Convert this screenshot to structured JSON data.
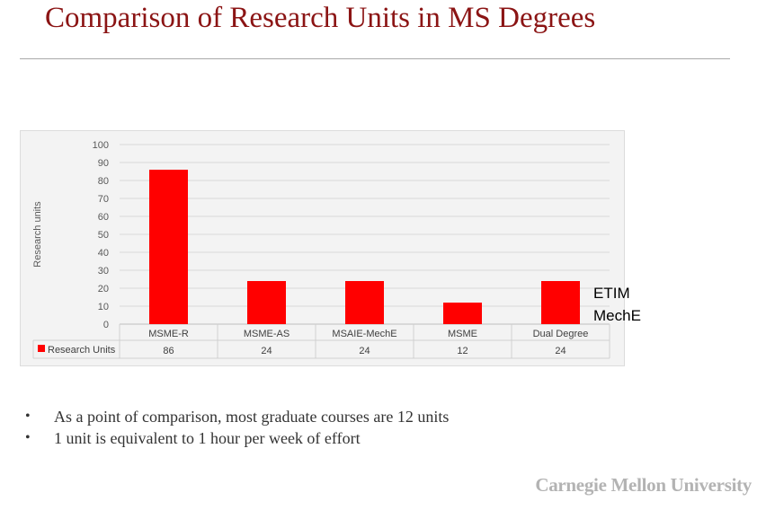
{
  "slide": {
    "title": "Comparison of Research Units in MS Degrees",
    "side_note": [
      "ETIM",
      "MechE"
    ],
    "bullets": [
      "As a point of comparison, most graduate courses are 12 units",
      "1 unit is equivalent to 1 hour per week of effort"
    ],
    "footer": "Carnegie Mellon University"
  },
  "colors": {
    "title": "#8b1414",
    "bar": "#ff0000"
  },
  "chart_data": {
    "type": "bar",
    "categories": [
      "MSME-R",
      "MSME-AS",
      "MSAIE-MechE",
      "MSME",
      "Dual Degree"
    ],
    "series": [
      {
        "name": "Research Units",
        "values": [
          86,
          24,
          24,
          12,
          24
        ]
      }
    ],
    "value_labels": [
      "86",
      "24",
      "24",
      "12",
      "24"
    ],
    "ylabel": "Research units",
    "ylim": [
      0,
      100
    ],
    "yticks": [
      "0",
      "10",
      "20",
      "30",
      "40",
      "50",
      "60",
      "70",
      "80",
      "90",
      "100"
    ],
    "grid": true,
    "legend": "data table below axis"
  }
}
